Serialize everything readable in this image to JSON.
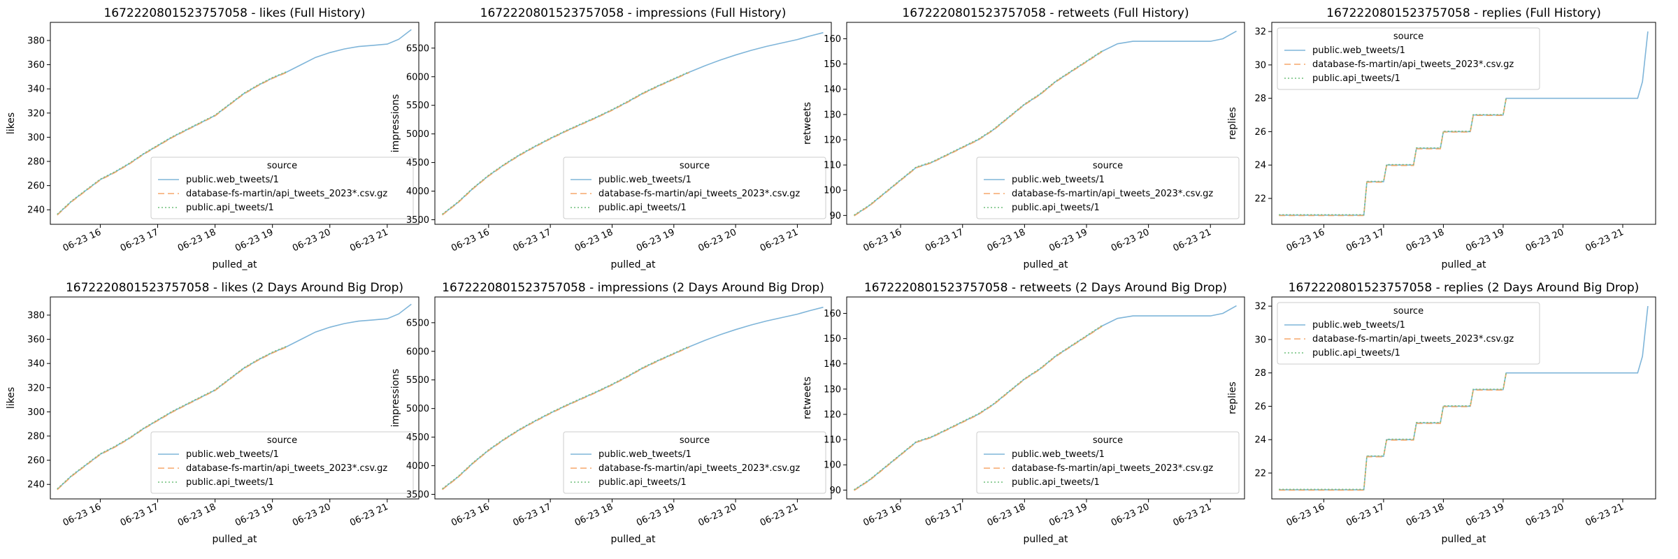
{
  "chart_data": [
    {
      "type": "line",
      "metric": "likes",
      "title": "1672220801523757058 - likes (Full History)",
      "xlabel": "pulled_at",
      "ylabel": "likes",
      "ylim": [
        228,
        395
      ],
      "yticks": [
        240,
        260,
        280,
        300,
        320,
        340,
        360,
        380
      ],
      "legend_position": "lower-right",
      "series_ref": "likes"
    },
    {
      "type": "line",
      "metric": "impressions",
      "title": "1672220801523757058 - impressions (Full History)",
      "xlabel": "pulled_at",
      "ylabel": "impressions",
      "ylim": [
        3420,
        6950
      ],
      "yticks": [
        3500,
        4000,
        4500,
        5000,
        5500,
        6000,
        6500
      ],
      "legend_position": "lower-right",
      "series_ref": "impressions"
    },
    {
      "type": "line",
      "metric": "retweets",
      "title": "1672220801523757058 - retweets (Full History)",
      "xlabel": "pulled_at",
      "ylabel": "retweets",
      "ylim": [
        86.5,
        166.5
      ],
      "yticks": [
        90,
        100,
        110,
        120,
        130,
        140,
        150,
        160
      ],
      "legend_position": "lower-right",
      "series_ref": "retweets"
    },
    {
      "type": "line",
      "metric": "replies",
      "title": "1672220801523757058 - replies (Full History)",
      "xlabel": "pulled_at",
      "ylabel": "replies",
      "ylim": [
        20.45,
        32.55
      ],
      "yticks": [
        22,
        24,
        26,
        28,
        30,
        32
      ],
      "legend_position": "upper-left",
      "series_ref": "replies"
    },
    {
      "type": "line",
      "metric": "likes",
      "title": "1672220801523757058 - likes (2 Days Around Big Drop)",
      "xlabel": "pulled_at",
      "ylabel": "likes",
      "ylim": [
        228,
        395
      ],
      "yticks": [
        240,
        260,
        280,
        300,
        320,
        340,
        360,
        380
      ],
      "legend_position": "lower-right",
      "series_ref": "likes"
    },
    {
      "type": "line",
      "metric": "impressions",
      "title": "1672220801523757058 - impressions (2 Days Around Big Drop)",
      "xlabel": "pulled_at",
      "ylabel": "impressions",
      "ylim": [
        3420,
        6950
      ],
      "yticks": [
        3500,
        4000,
        4500,
        5000,
        5500,
        6000,
        6500
      ],
      "legend_position": "lower-right",
      "series_ref": "impressions"
    },
    {
      "type": "line",
      "metric": "retweets",
      "title": "1672220801523757058 - retweets (2 Days Around Big Drop)",
      "xlabel": "pulled_at",
      "ylabel": "retweets",
      "ylim": [
        86.5,
        166.5
      ],
      "yticks": [
        90,
        100,
        110,
        120,
        130,
        140,
        150,
        160
      ],
      "legend_position": "lower-right",
      "series_ref": "retweets"
    },
    {
      "type": "line",
      "metric": "replies",
      "title": "1672220801523757058 - replies (2 Days Around Big Drop)",
      "xlabel": "pulled_at",
      "ylabel": "replies",
      "ylim": [
        20.45,
        32.55
      ],
      "yticks": [
        22,
        24,
        26,
        28,
        30,
        32
      ],
      "legend_position": "upper-left",
      "series_ref": "replies"
    }
  ],
  "shared": {
    "x_ticks": [
      "06-23 16",
      "06-23 17",
      "06-23 18",
      "06-23 19",
      "06-23 20",
      "06-23 21"
    ],
    "x_tick_hours": [
      16,
      17,
      18,
      19,
      20,
      21
    ],
    "xlim_hours": [
      15.13,
      21.55
    ],
    "legend_title": "source",
    "series": [
      {
        "name": "public.web_tweets/1",
        "color": "#7fb5d9",
        "dash": "solid",
        "range_hours": [
          15.25,
          21.42
        ]
      },
      {
        "name": "database-fs-martin/api_tweets_2023*.csv.gz",
        "color": "#f5a76c",
        "dash": "dashed",
        "range_hours": [
          15.25,
          19.25
        ]
      },
      {
        "name": "public.api_tweets/1",
        "color": "#6fbf7a",
        "dash": "dotted",
        "range_hours": [
          15.25,
          19.25
        ]
      }
    ],
    "metric_data": {
      "likes": [
        [
          15.25,
          236
        ],
        [
          15.5,
          247
        ],
        [
          15.75,
          256
        ],
        [
          16.0,
          265
        ],
        [
          16.25,
          271
        ],
        [
          16.5,
          278
        ],
        [
          16.75,
          286
        ],
        [
          17.0,
          293
        ],
        [
          17.25,
          300
        ],
        [
          17.5,
          306
        ],
        [
          17.75,
          312
        ],
        [
          18.0,
          318
        ],
        [
          18.25,
          327
        ],
        [
          18.5,
          336
        ],
        [
          18.75,
          343
        ],
        [
          19.0,
          349
        ],
        [
          19.25,
          354
        ],
        [
          19.5,
          360
        ],
        [
          19.75,
          366
        ],
        [
          20.0,
          370
        ],
        [
          20.25,
          373
        ],
        [
          20.5,
          375
        ],
        [
          20.75,
          376
        ],
        [
          21.0,
          377
        ],
        [
          21.2,
          381
        ],
        [
          21.42,
          389
        ]
      ],
      "impressions": [
        [
          15.25,
          3590
        ],
        [
          15.5,
          3800
        ],
        [
          15.75,
          4050
        ],
        [
          16.0,
          4270
        ],
        [
          16.25,
          4460
        ],
        [
          16.5,
          4630
        ],
        [
          16.75,
          4780
        ],
        [
          17.0,
          4920
        ],
        [
          17.25,
          5050
        ],
        [
          17.5,
          5170
        ],
        [
          17.75,
          5290
        ],
        [
          18.0,
          5420
        ],
        [
          18.25,
          5560
        ],
        [
          18.5,
          5710
        ],
        [
          18.75,
          5840
        ],
        [
          19.0,
          5960
        ],
        [
          19.25,
          6080
        ],
        [
          19.5,
          6190
        ],
        [
          19.75,
          6290
        ],
        [
          20.0,
          6380
        ],
        [
          20.25,
          6460
        ],
        [
          20.5,
          6530
        ],
        [
          20.75,
          6590
        ],
        [
          21.0,
          6650
        ],
        [
          21.2,
          6710
        ],
        [
          21.42,
          6770
        ]
      ],
      "retweets": [
        [
          15.25,
          90
        ],
        [
          15.5,
          94
        ],
        [
          15.75,
          99
        ],
        [
          16.0,
          104
        ],
        [
          16.25,
          109
        ],
        [
          16.5,
          111
        ],
        [
          16.75,
          114
        ],
        [
          17.0,
          117
        ],
        [
          17.25,
          120
        ],
        [
          17.5,
          124
        ],
        [
          17.75,
          129
        ],
        [
          18.0,
          134
        ],
        [
          18.25,
          138
        ],
        [
          18.5,
          143
        ],
        [
          18.75,
          147
        ],
        [
          19.0,
          151
        ],
        [
          19.25,
          155
        ],
        [
          19.5,
          158
        ],
        [
          19.75,
          159
        ],
        [
          20.0,
          159
        ],
        [
          20.5,
          159
        ],
        [
          21.0,
          159
        ],
        [
          21.2,
          160
        ],
        [
          21.42,
          163
        ]
      ],
      "replies": [
        [
          15.25,
          21
        ],
        [
          16.67,
          21
        ],
        [
          16.72,
          23
        ],
        [
          17.0,
          23
        ],
        [
          17.05,
          24
        ],
        [
          17.5,
          24
        ],
        [
          17.55,
          25
        ],
        [
          17.95,
          25
        ],
        [
          18.0,
          26
        ],
        [
          18.45,
          26
        ],
        [
          18.5,
          27
        ],
        [
          19.0,
          27
        ],
        [
          19.05,
          28
        ],
        [
          20.5,
          28
        ],
        [
          21.25,
          28
        ],
        [
          21.33,
          29
        ],
        [
          21.42,
          32
        ]
      ]
    }
  }
}
